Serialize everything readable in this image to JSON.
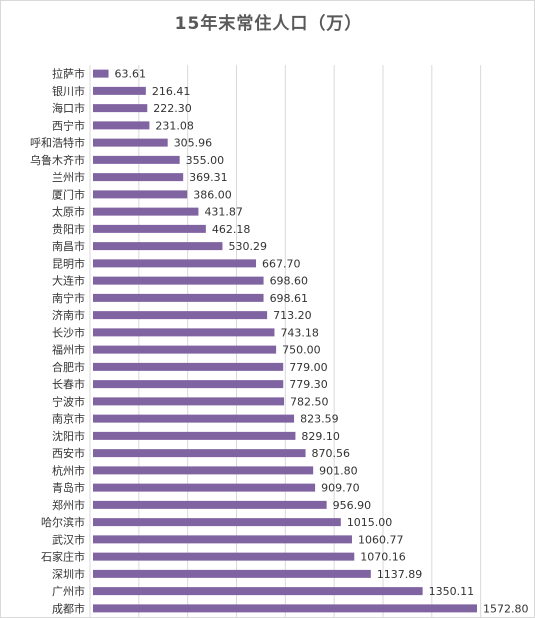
{
  "chart_data": {
    "type": "bar",
    "orientation": "horizontal",
    "title": "15年末常住人口（万）",
    "categories": [
      "拉萨市",
      "银川市",
      "海口市",
      "西宁市",
      "呼和浩特市",
      "乌鲁木齐市",
      "兰州市",
      "厦门市",
      "太原市",
      "贵阳市",
      "南昌市",
      "昆明市",
      "大连市",
      "南宁市",
      "济南市",
      "长沙市",
      "福州市",
      "合肥市",
      "长春市",
      "宁波市",
      "南京市",
      "沈阳市",
      "西安市",
      "杭州市",
      "青岛市",
      "郑州市",
      "哈尔滨市",
      "武汉市",
      "石家庄市",
      "深圳市",
      "广州市",
      "成都市"
    ],
    "values": [
      63.61,
      216.41,
      222.3,
      231.08,
      305.96,
      355.0,
      369.31,
      386.0,
      431.87,
      462.18,
      530.29,
      667.7,
      698.6,
      698.61,
      713.2,
      743.18,
      750.0,
      779.0,
      779.3,
      782.5,
      823.59,
      829.1,
      870.56,
      901.8,
      909.7,
      956.9,
      1015.0,
      1060.77,
      1070.16,
      1137.89,
      1350.11,
      1572.8
    ],
    "value_labels": [
      "63.61",
      "216.41",
      "222.30",
      "231.08",
      "305.96",
      "355.00",
      "369.31",
      "386.00",
      "431.87",
      "462.18",
      "530.29",
      "667.70",
      "698.60",
      "698.61",
      "713.20",
      "743.18",
      "750.00",
      "779.00",
      "779.30",
      "782.50",
      "823.59",
      "829.10",
      "870.56",
      "901.80",
      "909.70",
      "956.90",
      "1015.00",
      "1060.77",
      "1070.16",
      "1137.89",
      "1350.11",
      "1572.80"
    ],
    "xlim": [
      0,
      1600
    ],
    "grid": true,
    "legend": "none",
    "bar_color": "#8064a2"
  }
}
